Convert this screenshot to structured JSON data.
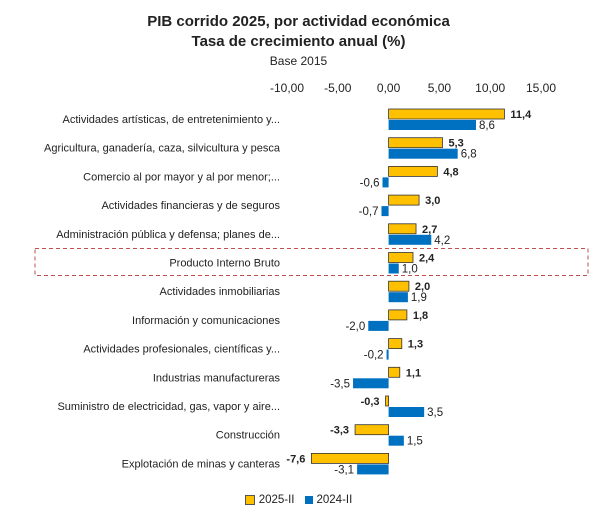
{
  "chart_data": {
    "type": "bar",
    "orientation": "horizontal",
    "title": "PIB corrido 2025, por actividad económica",
    "subtitle": "Tasa de crecimiento anual (%)",
    "base": "Base 2015",
    "xlim": [
      -10,
      15
    ],
    "ticks": [
      "-10,00",
      "-5,00",
      "0,00",
      "5,00",
      "10,00",
      "15,00"
    ],
    "tick_values": [
      -10,
      -5,
      0,
      5,
      10,
      15
    ],
    "categories": [
      "Actividades artísticas, de entretenimiento y...",
      "Agricultura, ganadería, caza, silvicultura y pesca",
      "Comercio al por mayor y al por menor;...",
      "Actividades financieras y de seguros",
      "Administración pública y defensa; planes de...",
      "Producto Interno Bruto",
      "Actividades inmobiliarias",
      "Información y comunicaciones",
      "Actividades profesionales, científicas y...",
      "Industrias manufactureras",
      "Suministro de electricidad, gas, vapor y aire...",
      "Construcción",
      "Explotación de minas y canteras"
    ],
    "highlight_category": "Producto Interno Bruto",
    "legend_position": "bottom",
    "series": [
      {
        "name": "2025-II",
        "color": "#FFC000",
        "values": [
          11.4,
          5.3,
          4.8,
          3.0,
          2.7,
          2.4,
          2.0,
          1.8,
          1.3,
          1.1,
          -0.3,
          -3.3,
          -7.6
        ],
        "labels": [
          "11,4",
          "5,3",
          "4,8",
          "3,0",
          "2,7",
          "2,4",
          "2,0",
          "1,8",
          "1,3",
          "1,1",
          "-0,3",
          "-3,3",
          "-7,6"
        ]
      },
      {
        "name": "2024-II",
        "color": "#0070C0",
        "values": [
          8.6,
          6.8,
          -0.6,
          -0.7,
          4.2,
          1.0,
          1.9,
          -2.0,
          -0.2,
          -3.5,
          3.5,
          1.5,
          -3.1
        ],
        "labels": [
          "8,6",
          "6,8",
          "-0,6",
          "-0,7",
          "4,2",
          "1,0",
          "1,9",
          "-2,0",
          "-0,2",
          "-3,5",
          "3,5",
          "1,5",
          "-3,1"
        ]
      }
    ]
  }
}
